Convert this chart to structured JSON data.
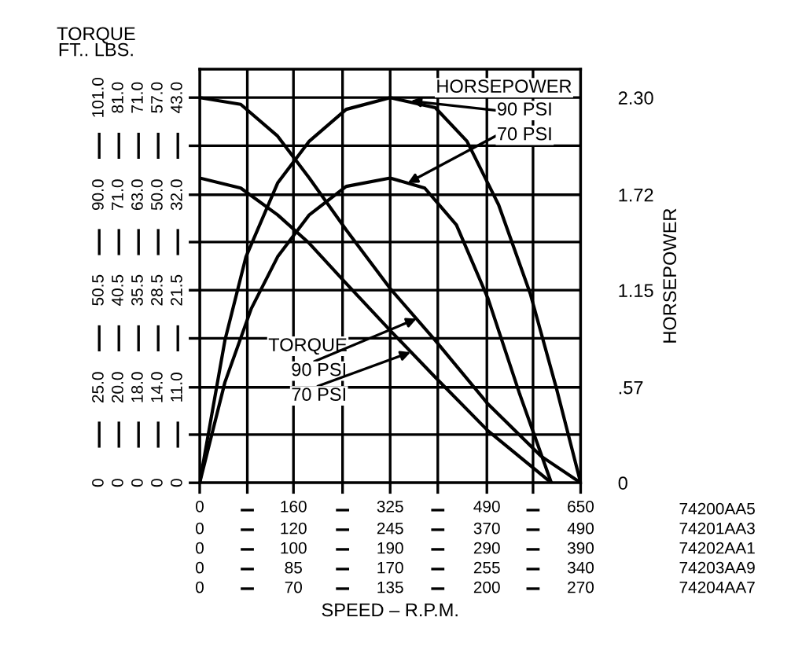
{
  "chart_data": {
    "type": "line",
    "xlabel": "SPEED – R.P.M.",
    "ylabel": "HORSEPOWER",
    "xlim": [
      0,
      650
    ],
    "ylim": [
      0,
      2.47
    ],
    "xticks": [
      0,
      {
        "value": 81.25,
        "label": null
      },
      160,
      {
        "value": 243.75,
        "label": null
      },
      325,
      {
        "value": 406.25,
        "label": null
      },
      490,
      {
        "value": 568.75,
        "label": null
      },
      650
    ],
    "yticks": [
      0,
      {
        "value": 0.2875,
        "label": null
      },
      {
        "value": 0.57,
        "label": ".57"
      },
      {
        "value": 0.8625,
        "label": null
      },
      1.15,
      {
        "value": 1.4375,
        "label": null
      },
      1.72,
      {
        "value": 2.0125,
        "label": null
      },
      {
        "value": 2.3,
        "label": "2.30"
      }
    ],
    "grid": true,
    "series": [
      {
        "color": "#000000",
        "x": [
          0,
          43,
          79,
          133,
          187,
          250,
          325,
          402,
          456,
          510,
          564,
          609,
          650
        ],
        "values": [
          0,
          0.85,
          1.35,
          1.79,
          2.04,
          2.23,
          2.3,
          2.24,
          2.04,
          1.66,
          1.13,
          0.56,
          0
        ]
      },
      {
        "color": "#000000",
        "x": [
          0,
          43,
          88,
          133,
          187,
          250,
          325,
          384,
          438,
          492,
          546,
          600
        ],
        "values": [
          0,
          0.6,
          1.04,
          1.35,
          1.6,
          1.77,
          1.82,
          1.76,
          1.54,
          1.1,
          0.53,
          0
        ]
      },
      {
        "color": "#000000",
        "x": [
          0,
          70,
          133,
          187,
          250,
          325,
          402,
          492,
          582,
          650
        ],
        "values": [
          2.3,
          2.26,
          2.07,
          1.82,
          1.51,
          1.16,
          0.85,
          0.47,
          0.16,
          0
        ]
      },
      {
        "color": "#000000",
        "x": [
          0,
          70,
          133,
          187,
          250,
          325,
          402,
          492,
          600
        ],
        "values": [
          1.82,
          1.76,
          1.6,
          1.43,
          1.19,
          0.91,
          0.63,
          0.31,
          0
        ]
      }
    ],
    "annotations": [
      "TORQUE\nFT.. LBS.",
      "HORSEPOWER",
      {
        "text": "90 PSI",
        "x": 360,
        "y": 2.28
      },
      {
        "text": "70 PSI",
        "x": 355,
        "y": 1.79
      },
      "TORQUE",
      {
        "text": "90 PSI",
        "x": 370,
        "y": 0.98
      },
      {
        "text": "70 PSI",
        "x": 360,
        "y": 0.78
      },
      "74200AA5",
      "74201AA3",
      "74202AA1",
      "74203AA9",
      "74204AA7",
      "0",
      "120",
      "245",
      "370",
      "490",
      "0",
      "100",
      "190",
      "290",
      "390",
      "0",
      "85",
      "170",
      "255",
      "340",
      "0",
      "70",
      "135",
      "200",
      "270",
      "0",
      "25.0",
      "50.5",
      "90.0",
      "101.0",
      "0",
      "20.0",
      "40.5",
      "71.0",
      "81.0",
      "0",
      "18.0",
      "35.5",
      "63.0",
      "71.0",
      "0",
      "14.0",
      "28.5",
      "50.0",
      "57.0",
      "0",
      "11.0",
      "21.5",
      "32.0",
      "43.0"
    ]
  }
}
